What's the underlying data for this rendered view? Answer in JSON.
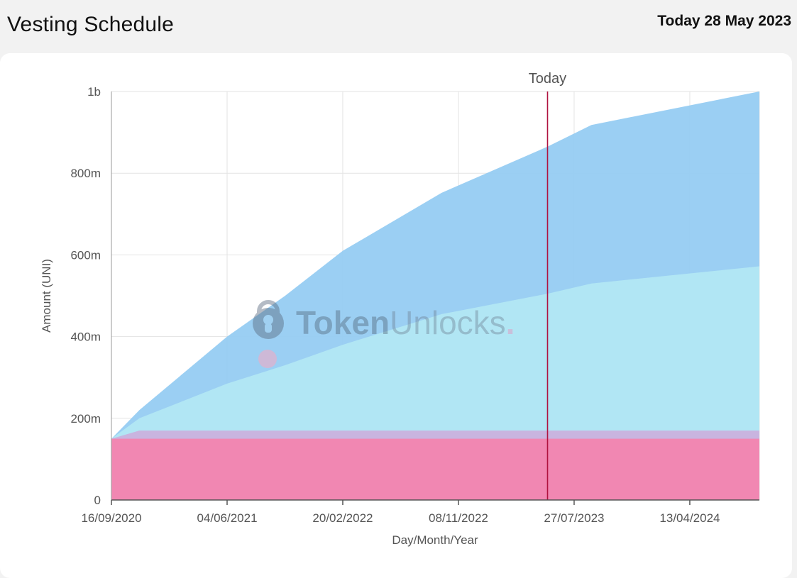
{
  "header": {
    "title": "Vesting Schedule",
    "today_text": "Today 28 May 2023"
  },
  "watermark": {
    "brand_bold": "Token",
    "brand_light": "Unlocks",
    "brand_dot": "."
  },
  "chart_data": {
    "type": "area",
    "stacked": true,
    "xlabel": "Day/Month/Year",
    "ylabel": "Amount (UNI)",
    "ylim": [
      0,
      1000000000
    ],
    "x_range": [
      "2020-09-16",
      "2024-09-17"
    ],
    "y_ticks": [
      {
        "value": 0,
        "label": "0"
      },
      {
        "value": 200000000,
        "label": "200m"
      },
      {
        "value": 400000000,
        "label": "400m"
      },
      {
        "value": 600000000,
        "label": "600m"
      },
      {
        "value": 800000000,
        "label": "800m"
      },
      {
        "value": 1000000000,
        "label": "1b"
      }
    ],
    "x_ticks": [
      {
        "date": "2020-09-16",
        "label": "16/09/2020"
      },
      {
        "date": "2021-06-04",
        "label": "04/06/2021"
      },
      {
        "date": "2022-02-20",
        "label": "20/02/2022"
      },
      {
        "date": "2022-11-08",
        "label": "08/11/2022"
      },
      {
        "date": "2023-07-27",
        "label": "27/07/2023"
      },
      {
        "date": "2024-04-13",
        "label": "13/04/2024"
      }
    ],
    "grid": true,
    "today_marker": {
      "date": "2023-05-28",
      "label": "Today",
      "color": "#b0123f"
    },
    "series": [
      {
        "color": "#f285b1",
        "points": [
          [
            "2020-09-16",
            150000000
          ],
          [
            "2024-09-17",
            150000000
          ]
        ]
      },
      {
        "color": "#c9b2de",
        "points": [
          [
            "2020-09-16",
            150000000
          ],
          [
            "2020-11-18",
            170000000
          ],
          [
            "2024-09-17",
            170000000
          ]
        ]
      },
      {
        "color": "#b2e6f4",
        "points": [
          [
            "2020-09-16",
            150000000
          ],
          [
            "2020-11-18",
            200000000
          ],
          [
            "2021-06-04",
            285000000
          ],
          [
            "2021-10-13",
            330000000
          ],
          [
            "2022-02-20",
            380000000
          ],
          [
            "2022-10-01",
            455000000
          ],
          [
            "2023-05-28",
            505000000
          ],
          [
            "2023-09-04",
            530000000
          ],
          [
            "2024-09-17",
            572000000
          ]
        ]
      },
      {
        "color": "#98cdf3",
        "points": [
          [
            "2020-09-16",
            150000000
          ],
          [
            "2020-11-18",
            220000000
          ],
          [
            "2021-06-04",
            400000000
          ],
          [
            "2021-10-13",
            500000000
          ],
          [
            "2022-02-20",
            610000000
          ],
          [
            "2022-10-01",
            752000000
          ],
          [
            "2023-05-28",
            865000000
          ],
          [
            "2023-09-04",
            918000000
          ],
          [
            "2024-09-17",
            1000000000
          ]
        ]
      }
    ]
  }
}
